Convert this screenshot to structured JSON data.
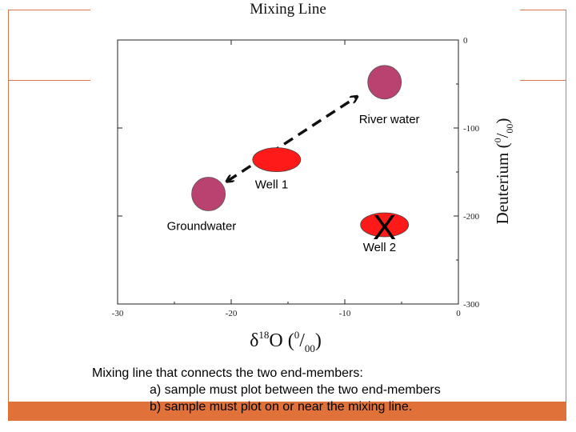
{
  "chart_data": {
    "type": "scatter",
    "title": "Mixing Line",
    "xlabel": "δ18O (0/00)",
    "ylabel": "Deuterium (0/00)",
    "xlim": [
      -30,
      0
    ],
    "ylim": [
      -300,
      0
    ],
    "x_ticks": [
      -30,
      -20,
      -10,
      0
    ],
    "y_ticks": [
      0,
      -100,
      -200,
      -300
    ],
    "points": [
      {
        "name": "River water",
        "label": "River water",
        "x": -6.5,
        "y": -48,
        "color": "#b94270",
        "shape": "circle"
      },
      {
        "name": "Groundwater",
        "label": "Groundwater",
        "x": -22,
        "y": -175,
        "color": "#b94270",
        "shape": "circle"
      },
      {
        "name": "Well 1",
        "label": "Well 1",
        "x": -16,
        "y": -136,
        "color": "#ff1a1a",
        "shape": "ellipse"
      },
      {
        "name": "Well 2",
        "label": "Well 2",
        "x": -6.5,
        "y": -210,
        "color": "#ff1a1a",
        "shape": "ellipse",
        "marker": "X"
      }
    ],
    "mixing_line": {
      "from": [
        -20.3,
        -160
      ],
      "to": [
        -9,
        -65
      ],
      "style": "dashed-double-arrow"
    }
  },
  "caption": {
    "line1": "Mixing line that connects the two end-members:",
    "line2": "a) sample must plot between the two end-members",
    "line3": "b) sample must plot on or near the mixing line."
  }
}
